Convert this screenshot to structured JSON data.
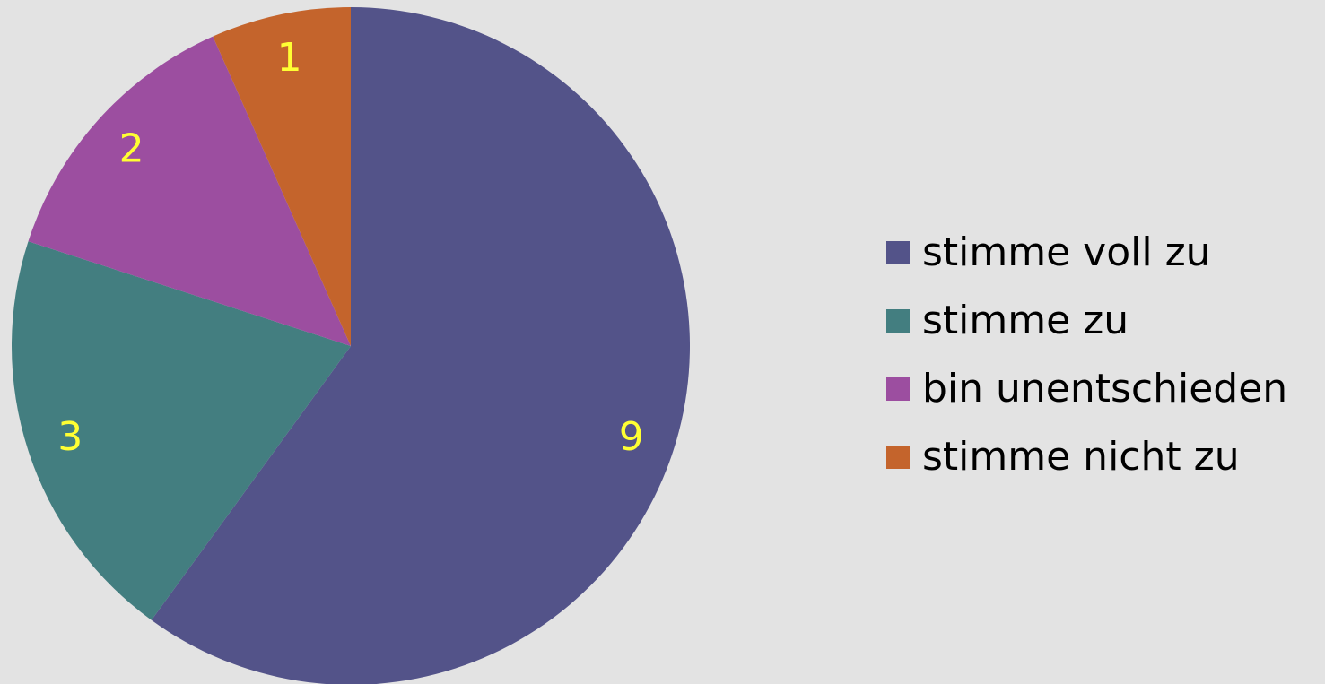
{
  "chart_data": {
    "type": "pie",
    "categories": [
      "stimme voll zu",
      "stimme zu",
      "bin unentschieden",
      "stimme nicht zu"
    ],
    "values": [
      9,
      3,
      2,
      1
    ],
    "colors": [
      "#535389",
      "#437e80",
      "#9c4ea0",
      "#c4642c"
    ],
    "label_color": "#ffff33",
    "start": "12 o'clock",
    "direction": "clockwise",
    "legend_position": "right"
  },
  "legend": {
    "items": [
      {
        "label": "stimme voll zu"
      },
      {
        "label": "stimme zu"
      },
      {
        "label": "bin unentschieden"
      },
      {
        "label": "stimme nicht zu"
      }
    ]
  }
}
